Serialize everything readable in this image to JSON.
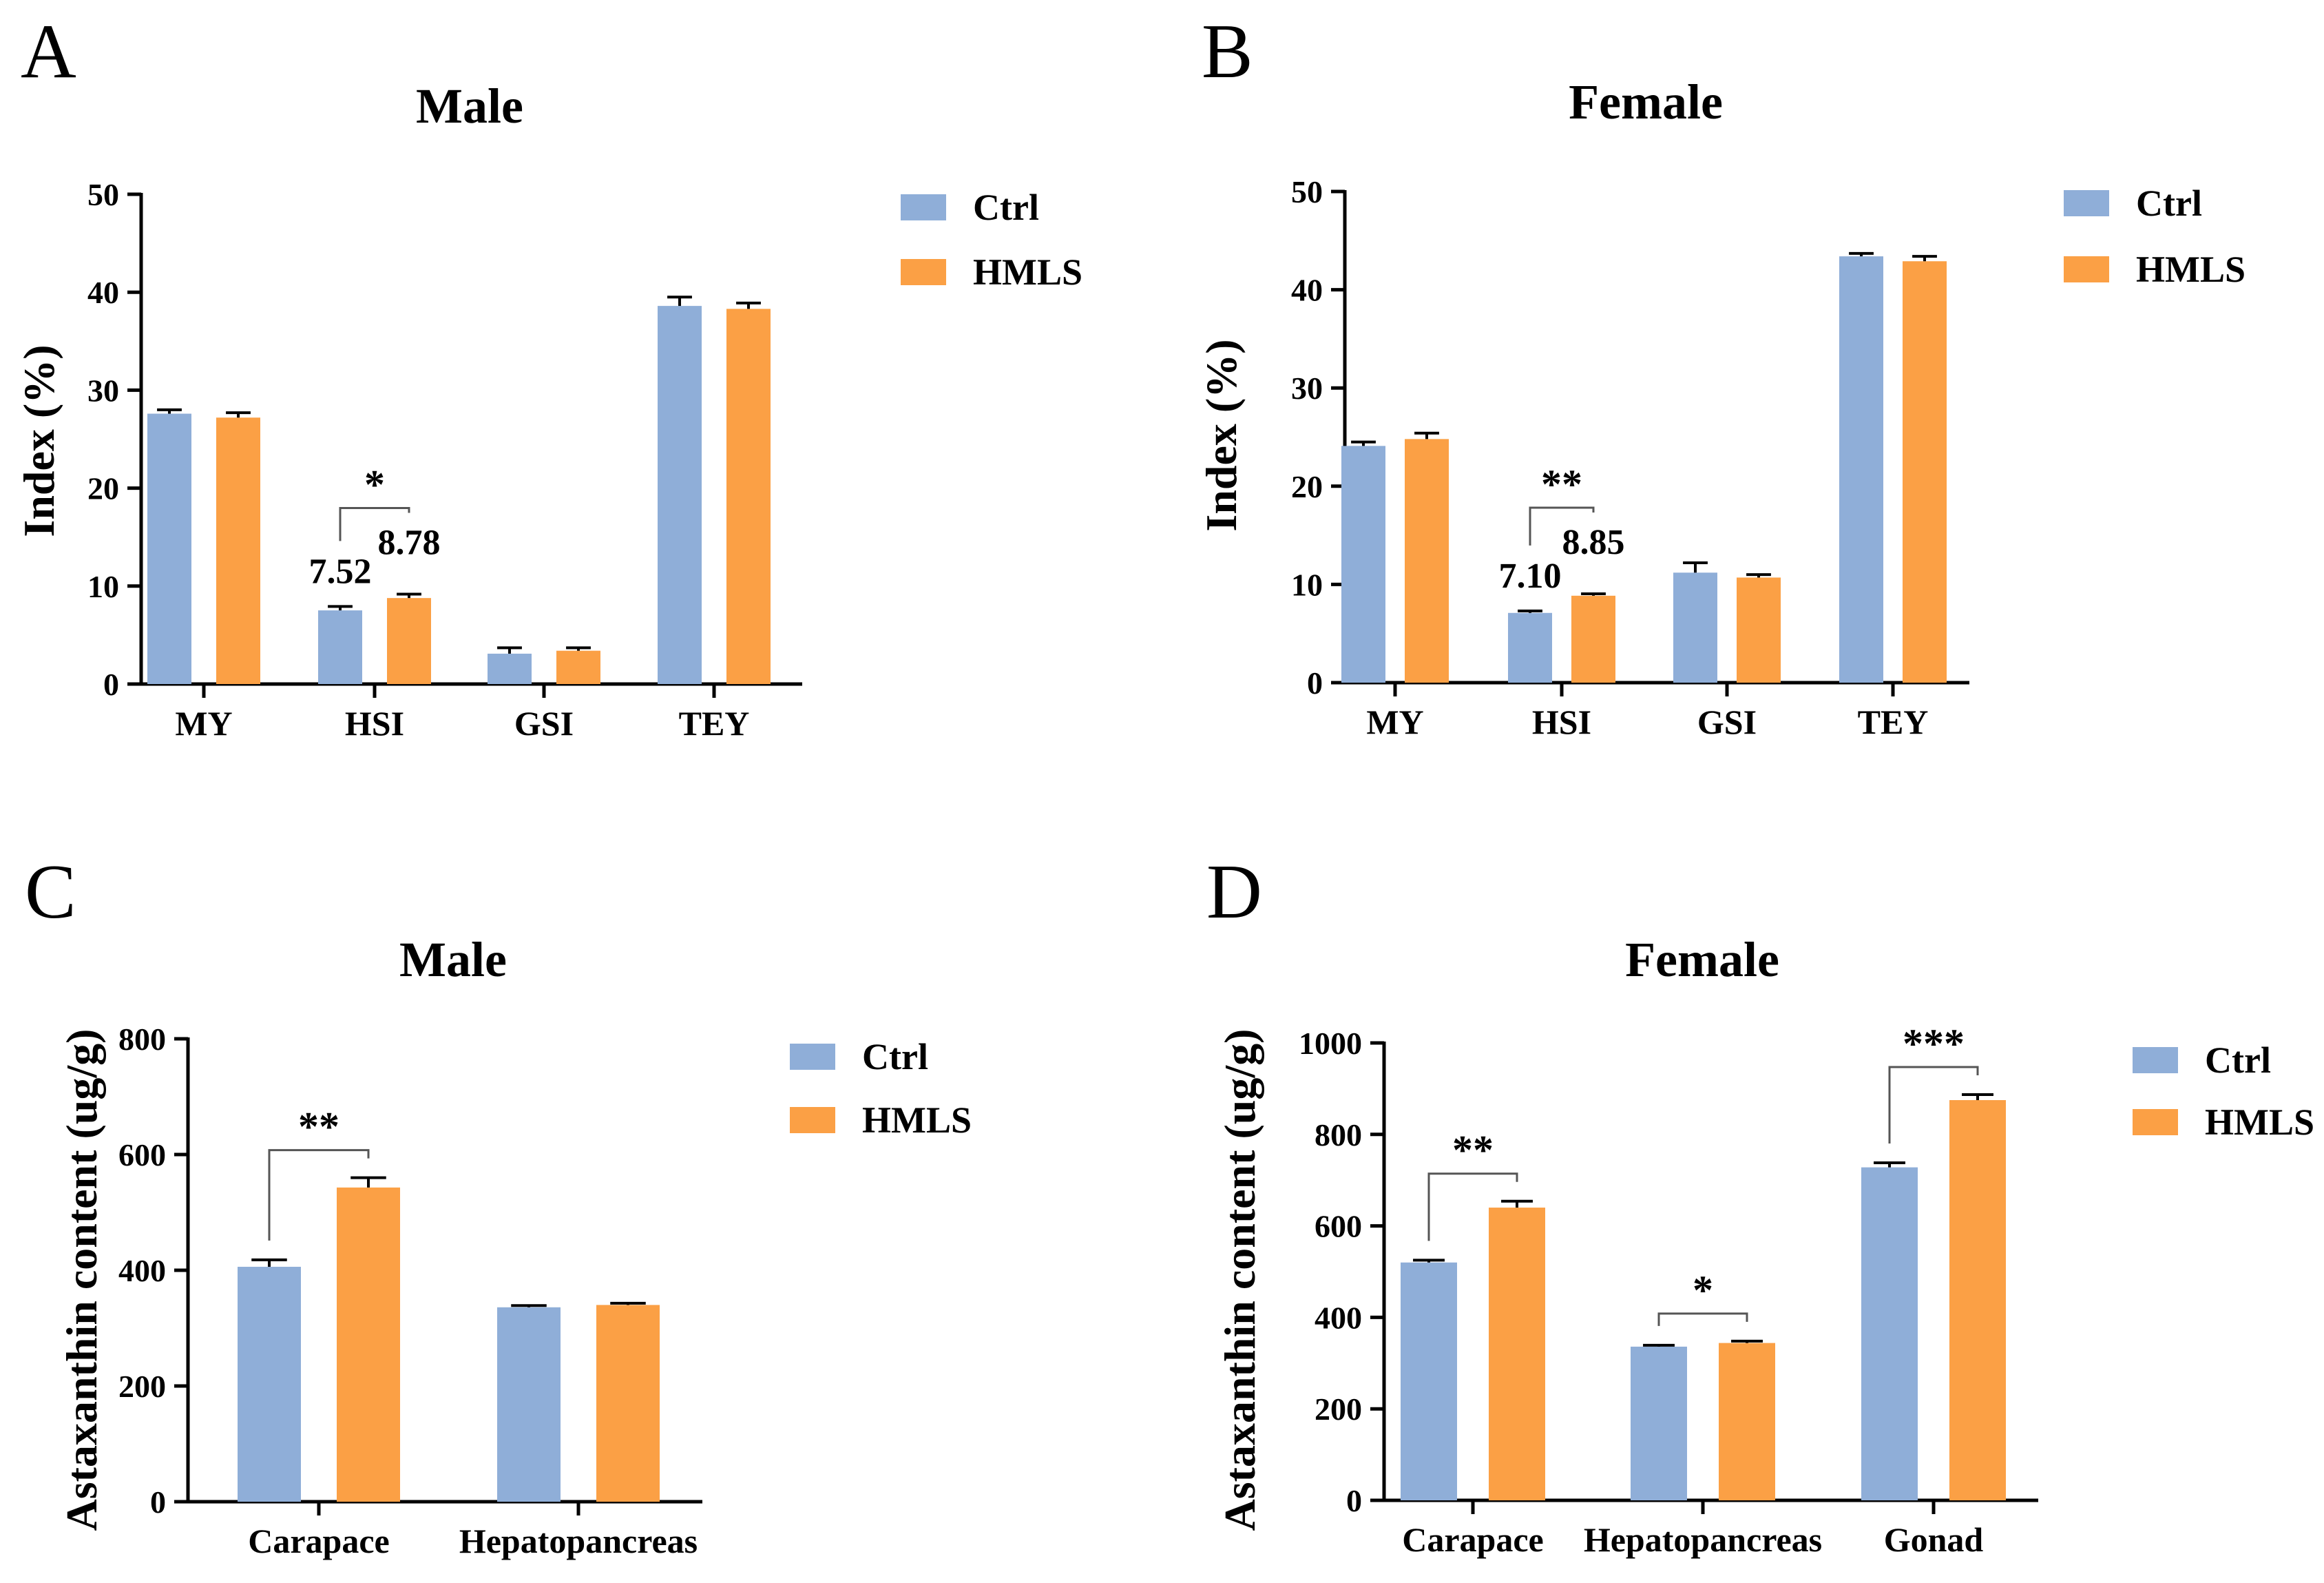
{
  "colors": {
    "ctrl": "#8faed8",
    "hmls": "#fba045",
    "axis": "#000000"
  },
  "chart_data": [
    {
      "panel": "A",
      "type": "bar",
      "title": "Male",
      "xlabel": "",
      "ylabel": "Index (%)",
      "ylim": [
        0,
        50
      ],
      "yticks": [
        "0",
        "10",
        "20",
        "30",
        "40",
        "50"
      ],
      "categories": [
        "MY",
        "HSI",
        "GSI",
        "TEY"
      ],
      "legend": [
        "Ctrl",
        "HMLS"
      ],
      "series": [
        {
          "name": "Ctrl",
          "values": [
            27.6,
            7.52,
            3.1,
            38.6
          ],
          "errors": [
            0.4,
            0.4,
            0.6,
            0.9
          ]
        },
        {
          "name": "HMLS",
          "values": [
            27.2,
            8.78,
            3.4,
            38.3
          ],
          "errors": [
            0.5,
            0.4,
            0.3,
            0.6
          ]
        }
      ],
      "value_labels": [
        {
          "category": 1,
          "series": 0,
          "text": "7.52"
        },
        {
          "category": 1,
          "series": 1,
          "text": "8.78"
        }
      ],
      "significance": [
        {
          "category": 1,
          "from_series": 0,
          "to_series": 1,
          "text": "*"
        }
      ]
    },
    {
      "panel": "B",
      "type": "bar",
      "title": "Female",
      "xlabel": "",
      "ylabel": "Index (%)",
      "ylim": [
        0,
        50
      ],
      "yticks": [
        "0",
        "10",
        "20",
        "30",
        "40",
        "50"
      ],
      "categories": [
        "MY",
        "HSI",
        "GSI",
        "TEY"
      ],
      "legend": [
        "Ctrl",
        "HMLS"
      ],
      "series": [
        {
          "name": "Ctrl",
          "values": [
            24.1,
            7.1,
            11.2,
            43.4
          ],
          "errors": [
            0.4,
            0.2,
            1.0,
            0.3
          ]
        },
        {
          "name": "HMLS",
          "values": [
            24.8,
            8.85,
            10.7,
            42.9
          ],
          "errors": [
            0.6,
            0.2,
            0.3,
            0.5
          ]
        }
      ],
      "value_labels": [
        {
          "category": 1,
          "series": 0,
          "text": "7.10"
        },
        {
          "category": 1,
          "series": 1,
          "text": "8.85"
        }
      ],
      "significance": [
        {
          "category": 1,
          "from_series": 0,
          "to_series": 1,
          "text": "**"
        }
      ]
    },
    {
      "panel": "C",
      "type": "bar",
      "title": "Male",
      "xlabel": "",
      "ylabel": "Astaxanthin content (ug/g)",
      "ylim": [
        0,
        800
      ],
      "yticks": [
        "0",
        "200",
        "400",
        "600",
        "800"
      ],
      "categories": [
        "Carapace",
        "Hepatopancreas"
      ],
      "legend": [
        "Ctrl",
        "HMLS"
      ],
      "series": [
        {
          "name": "Ctrl",
          "values": [
            406,
            336
          ],
          "errors": [
            12,
            3
          ]
        },
        {
          "name": "HMLS",
          "values": [
            543,
            340
          ],
          "errors": [
            17,
            3
          ]
        }
      ],
      "value_labels": [],
      "significance": [
        {
          "category": 0,
          "from_series": 0,
          "to_series": 1,
          "text": "**"
        }
      ]
    },
    {
      "panel": "D",
      "type": "bar",
      "title": "Female",
      "xlabel": "",
      "ylabel": "Astaxanthin content (ug/g)",
      "ylim": [
        0,
        1000
      ],
      "yticks": [
        "0",
        "200",
        "400",
        "600",
        "800",
        "1000"
      ],
      "categories": [
        "Carapace",
        "Hepatopancreas",
        "Gonad"
      ],
      "legend": [
        "Ctrl",
        "HMLS"
      ],
      "series": [
        {
          "name": "Ctrl",
          "values": [
            520,
            336,
            728
          ],
          "errors": [
            5,
            3,
            10
          ]
        },
        {
          "name": "HMLS",
          "values": [
            640,
            344,
            875
          ],
          "errors": [
            14,
            4,
            12
          ]
        }
      ],
      "value_labels": [],
      "significance": [
        {
          "category": 0,
          "from_series": 0,
          "to_series": 1,
          "text": "**"
        },
        {
          "category": 1,
          "from_series": 0,
          "to_series": 1,
          "text": "*"
        },
        {
          "category": 2,
          "from_series": 0,
          "to_series": 1,
          "text": "***"
        }
      ]
    }
  ]
}
